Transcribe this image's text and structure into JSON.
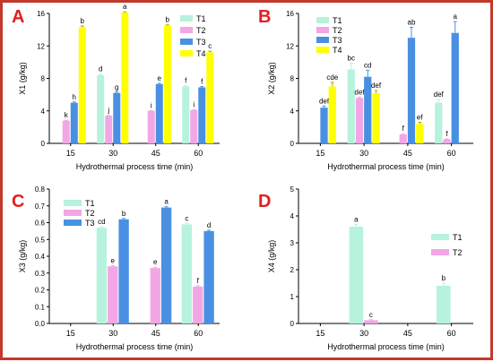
{
  "colors": {
    "T1": "#b7f2dc",
    "T2": "#f2a6e6",
    "T3": "#4a90e2",
    "T4": "#ffff00",
    "panel_letter": "#e02020",
    "frame": "#c0392b"
  },
  "chart_data": [
    {
      "panel": "A",
      "type": "bar",
      "xlabel": "Hydrothermal process time (min)",
      "ylabel": "X1 (g/kg)",
      "categories": [
        "15",
        "30",
        "45",
        "60"
      ],
      "ylim": [
        0,
        16
      ],
      "yticks": [
        0,
        4,
        8,
        12,
        16
      ],
      "legend_position": "top-right",
      "series": [
        {
          "name": "T1",
          "values": [
            null,
            8.4,
            null,
            7.0
          ],
          "errors": [
            null,
            0.15,
            null,
            0.1
          ],
          "letters": [
            "",
            "d",
            "",
            "f"
          ]
        },
        {
          "name": "T2",
          "values": [
            2.8,
            3.4,
            4.0,
            4.1
          ],
          "errors": [
            0.05,
            0.05,
            0.05,
            0.05
          ],
          "letters": [
            "k",
            "j",
            "i",
            "i"
          ]
        },
        {
          "name": "T3",
          "values": [
            5.0,
            6.2,
            7.3,
            6.9
          ],
          "errors": [
            0.1,
            0.1,
            0.1,
            0.1
          ],
          "letters": [
            "h",
            "g",
            "e",
            "f"
          ]
        },
        {
          "name": "T4",
          "values": [
            14.3,
            16.1,
            14.5,
            11.2
          ],
          "errors": [
            0.15,
            0.1,
            0.1,
            0.15
          ],
          "letters": [
            "b",
            "a",
            "b",
            "c"
          ]
        }
      ]
    },
    {
      "panel": "B",
      "type": "bar",
      "xlabel": "Hydrothermal process time (min)",
      "ylabel": "X2 (g/kg)",
      "categories": [
        "15",
        "30",
        "45",
        "60"
      ],
      "ylim": [
        0,
        16
      ],
      "yticks": [
        0,
        4,
        8,
        12,
        16
      ],
      "legend_position": "top-left",
      "series": [
        {
          "name": "T1",
          "values": [
            null,
            9.1,
            null,
            5.0
          ],
          "errors": [
            null,
            0.8,
            null,
            0.4
          ],
          "letters": [
            "",
            "bc",
            "",
            "def"
          ]
        },
        {
          "name": "T2",
          "values": [
            null,
            5.6,
            1.1,
            0.5
          ],
          "errors": [
            null,
            0.1,
            0.1,
            0.05
          ],
          "letters": [
            "",
            "def",
            "f",
            "f"
          ]
        },
        {
          "name": "T3",
          "values": [
            4.4,
            8.2,
            13.0,
            13.6
          ],
          "errors": [
            0.2,
            0.8,
            1.3,
            1.4
          ],
          "letters": [
            "def",
            "cd",
            "ab",
            "a"
          ]
        },
        {
          "name": "T4",
          "values": [
            7.0,
            6.2,
            2.4,
            null
          ],
          "errors": [
            0.5,
            0.3,
            0.2,
            null
          ],
          "letters": [
            "cde",
            "def",
            "ef",
            ""
          ]
        }
      ]
    },
    {
      "panel": "C",
      "type": "bar",
      "xlabel": "Hydrothermal process time (min)",
      "ylabel": "X3 (g/kg)",
      "categories": [
        "15",
        "30",
        "45",
        "60"
      ],
      "ylim": [
        0,
        0.8
      ],
      "yticks": [
        0.0,
        0.1,
        0.2,
        0.3,
        0.4,
        0.5,
        0.6,
        0.7,
        0.8
      ],
      "legend_position": "top-left",
      "series": [
        {
          "name": "T1",
          "values": [
            null,
            0.57,
            null,
            0.59
          ],
          "errors": [
            null,
            0.005,
            null,
            0.005
          ],
          "letters": [
            "",
            "cd",
            "",
            "c"
          ]
        },
        {
          "name": "T2",
          "values": [
            null,
            0.34,
            0.33,
            0.22
          ],
          "errors": [
            null,
            0.005,
            0.005,
            0.005
          ],
          "letters": [
            "",
            "e",
            "e",
            "f"
          ]
        },
        {
          "name": "T3",
          "values": [
            null,
            0.62,
            0.69,
            0.55
          ],
          "errors": [
            null,
            0.005,
            0.005,
            0.005
          ],
          "letters": [
            "",
            "b",
            "a",
            "d"
          ]
        }
      ]
    },
    {
      "panel": "D",
      "type": "bar",
      "xlabel": "Hydrothermal process time (min)",
      "ylabel": "X4 (g/kg)",
      "categories": [
        "15",
        "30",
        "45",
        "60"
      ],
      "ylim": [
        0,
        5
      ],
      "yticks": [
        0,
        1,
        2,
        3,
        4,
        5
      ],
      "legend_position": "right",
      "series": [
        {
          "name": "T1",
          "values": [
            null,
            3.6,
            null,
            1.4
          ],
          "errors": [
            null,
            0.08,
            null,
            0.1
          ],
          "letters": [
            "",
            "a",
            "",
            "b"
          ]
        },
        {
          "name": "T2",
          "values": [
            null,
            0.12,
            null,
            null
          ],
          "errors": [
            null,
            0.02,
            null,
            null
          ],
          "letters": [
            "",
            "c",
            "",
            ""
          ]
        }
      ]
    }
  ]
}
